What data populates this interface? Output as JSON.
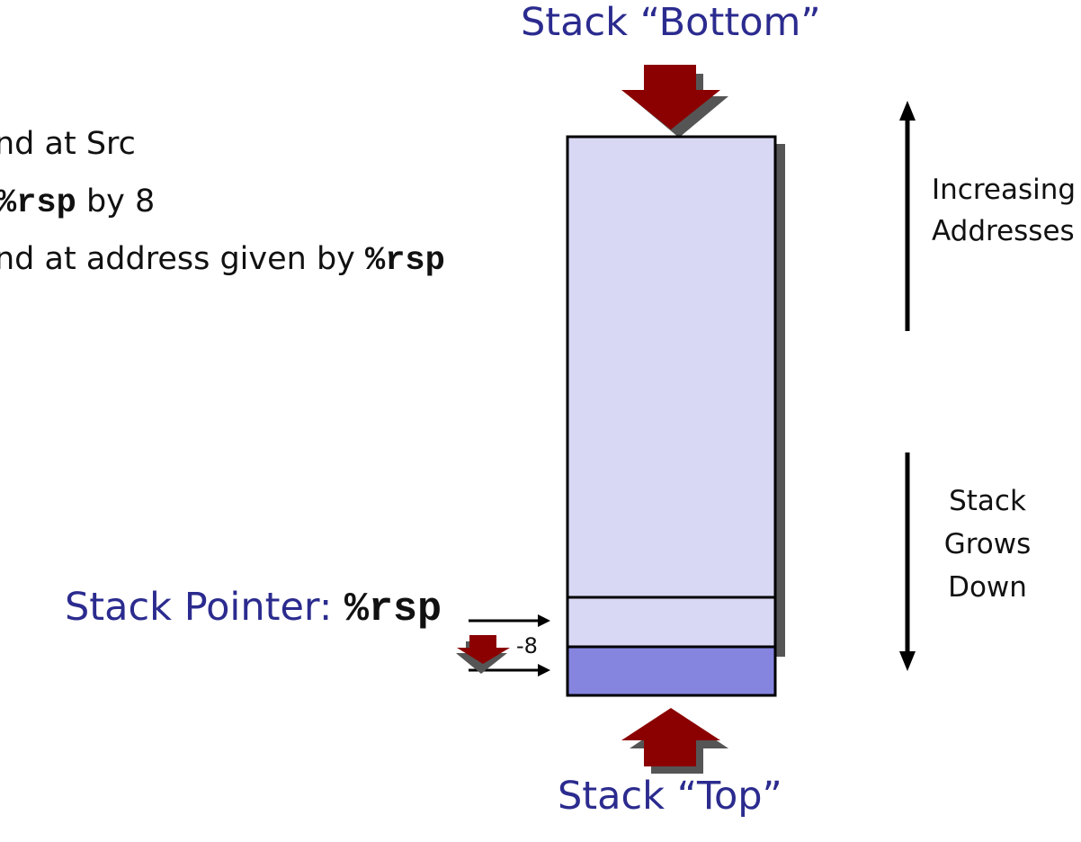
{
  "title_bottom": "Stack “Bottom”",
  "title_top": "Stack “Top”",
  "bullets": [
    {
      "text_before": "nd at Src",
      "code": "",
      "text_after": ""
    },
    {
      "text_before": "",
      "code": "%rsp",
      "text_after": " by 8"
    },
    {
      "text_before": "nd at address given by ",
      "code": "%rsp",
      "text_after": ""
    }
  ],
  "pointer_label": "Stack Pointer: ",
  "pointer_register": "%rsp",
  "offset_label": "-8",
  "right_labels": {
    "increasing_line1": "Increasing",
    "increasing_line2": "Addresses",
    "grows_line1": "Stack",
    "grows_line2": "Grows",
    "grows_line3": "Down"
  },
  "colors": {
    "stack_fill": "#d8d8f4",
    "new_slot_fill": "#8585e0",
    "arrow_red": "#8b0000",
    "label_blue": "#2b2b8f"
  }
}
